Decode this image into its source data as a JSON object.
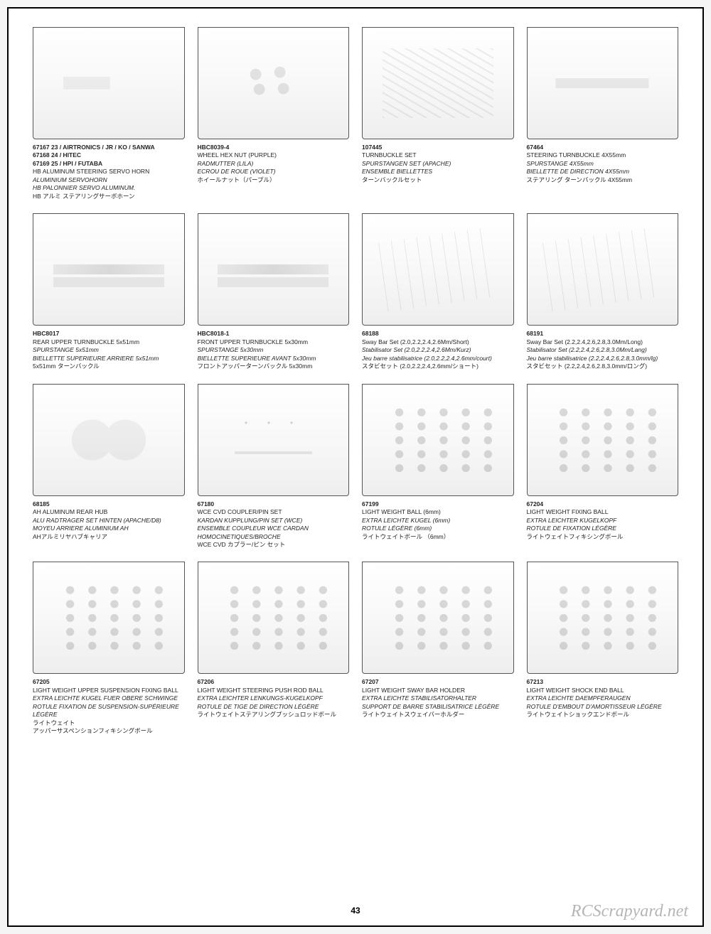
{
  "page_number": "43",
  "watermark": "RCScrapyard.net",
  "cards": [
    {
      "glyph": "horn",
      "lines": [
        {
          "t": "67167 23 / AIRTRONICS / JR / KO / SANWA",
          "b": true
        },
        {
          "t": "67168 24 / HITEC",
          "b": true
        },
        {
          "t": "67169 25 / HPI / FUTABA",
          "b": true
        },
        {
          "t": "HB ALUMINUM STEERING SERVO HORN"
        },
        {
          "t": "ALUMINIUM SERVOHORN",
          "i": true
        },
        {
          "t": "HB PALONNIER SERVO ALUMINUM.",
          "i": true
        },
        {
          "t": "HB アルミ ステアリングサーボホーン"
        }
      ]
    },
    {
      "glyph": "nuts",
      "lines": [
        {
          "t": "HBC8039-4",
          "b": true
        },
        {
          "t": "WHEEL HEX NUT (PURPLE)"
        },
        {
          "t": "RADMUTTER (LILA)",
          "i": true
        },
        {
          "t": "ECROU DE ROUE (VIOLET)",
          "i": true
        },
        {
          "t": "ホイールナット（パープル）"
        }
      ]
    },
    {
      "glyph": "links",
      "lines": [
        {
          "t": "107445",
          "b": true
        },
        {
          "t": "TURNBUCKLE SET"
        },
        {
          "t": "SPURSTANGEN SET (APACHE)",
          "i": true
        },
        {
          "t": "ENSEMBLE BIELLETTES",
          "i": true
        },
        {
          "t": "ターンバックルセット"
        }
      ]
    },
    {
      "glyph": "rod",
      "lines": [
        {
          "t": "67464",
          "b": true
        },
        {
          "t": "STEERING TURNBUCKLE 4X55mm"
        },
        {
          "t": "SPURSTANGE 4X55mm",
          "i": true
        },
        {
          "t": "BIELLETTE DE DIRECTION 4X55mm",
          "i": true
        },
        {
          "t": "ステアリング ターンバックル 4X55mm"
        }
      ]
    },
    {
      "glyph": "rods",
      "lines": [
        {
          "t": "HBC8017",
          "b": true
        },
        {
          "t": "REAR UPPER TURNBUCKLE 5x51mm"
        },
        {
          "t": "SPURSTANGE 5x51mm",
          "i": true
        },
        {
          "t": "BIELLETTE SUPERIEURE ARRIERE 5x51mm",
          "i": true
        },
        {
          "t": "5x51mm ターンバックル"
        }
      ]
    },
    {
      "glyph": "rods",
      "lines": [
        {
          "t": "HBC8018-1",
          "b": true
        },
        {
          "t": "FRONT UPPER TURNBUCKLE 5x30mm"
        },
        {
          "t": "SPURSTANGE 5x30mm",
          "i": true
        },
        {
          "t": "BIELLETTE SUPERIEURE AVANT 5x30mm",
          "i": true
        },
        {
          "t": "フロントアッパーターンバックル 5x30mm"
        }
      ]
    },
    {
      "glyph": "bars",
      "lines": [
        {
          "t": "68188",
          "b": true
        },
        {
          "t": "Sway Bar Set (2.0,2.2,2.4,2.6Mm/Short)"
        },
        {
          "t": "Stabilisator Set (2.0,2.2,2.4,2.6Mm/Kurz)",
          "i": true
        },
        {
          "t": "Jeu barre stabilisatrice (2.0,2.2,2.4,2.6mm/court)",
          "i": true
        },
        {
          "t": "スタビセット (2.0,2.2,2.4,2.6mm/ショート)"
        }
      ]
    },
    {
      "glyph": "bars",
      "lines": [
        {
          "t": "68191",
          "b": true
        },
        {
          "t": "Sway Bar Set (2.2,2.4,2.6,2.8,3.0Mm/Long)"
        },
        {
          "t": "Stabilisator Set (2.2,2.4,2.6,2.8,3.0Mm/Lang)",
          "i": true
        },
        {
          "t": "Jeu barre stabilisatrice (2.2,2.4,2.6,2.8,3.0mm/lg)",
          "i": true
        },
        {
          "t": "スタビセット (2.2,2.4,2.6,2.8,3.0mm/ロング)"
        }
      ]
    },
    {
      "glyph": "hub",
      "lines": [
        {
          "t": "68185",
          "b": true
        },
        {
          "t": "AH ALUMINUM REAR HUB"
        },
        {
          "t": "ALU RADTRAGER SET HINTEN (APACHE/D8)",
          "i": true
        },
        {
          "t": "MOYEU ARRIERE ALUMINIUM AH",
          "i": true
        },
        {
          "t": "AHアルミリヤハブキャリア"
        }
      ]
    },
    {
      "glyph": "coupler",
      "lines": [
        {
          "t": "67180",
          "b": true
        },
        {
          "t": "WCE CVD COUPLER/PIN SET"
        },
        {
          "t": "KARDAN KUPPLUNG/PIN SET (WCE)",
          "i": true
        },
        {
          "t": "ENSEMBLE COUPLEUR WCE CARDAN HOMOCINETIQUES/BROCHE",
          "i": true
        },
        {
          "t": "WCE CVD カプラー/ピン セット"
        }
      ]
    },
    {
      "glyph": "balls",
      "lines": [
        {
          "t": "67199",
          "b": true
        },
        {
          "t": "LIGHT WEIGHT BALL (6mm)"
        },
        {
          "t": "EXTRA LEICHTE KUGEL (6mm)",
          "i": true
        },
        {
          "t": "ROTULE LÉGÈRE (6mm)",
          "i": true
        },
        {
          "t": "ライトウェイトボール （6mm）"
        }
      ]
    },
    {
      "glyph": "balls",
      "lines": [
        {
          "t": "67204",
          "b": true
        },
        {
          "t": "LIGHT WEIGHT FIXING BALL"
        },
        {
          "t": "EXTRA LEICHTER KUGELKOPF",
          "i": true
        },
        {
          "t": "ROTULE DE FIXATION LÉGÈRE",
          "i": true
        },
        {
          "t": "ライトウェイトフィキシングボール"
        }
      ]
    },
    {
      "glyph": "balls",
      "lines": [
        {
          "t": "67205",
          "b": true
        },
        {
          "t": "LIGHT WEIGHT UPPER SUSPENSION FIXING BALL"
        },
        {
          "t": "EXTRA LEICHTE KUGEL FUER OBERE SCHWINGE",
          "i": true
        },
        {
          "t": "ROTULE FIXATION DE SUSPENSION-SUPÉRIEURE LÉGÈRE",
          "i": true
        },
        {
          "t": "ライトウェイト"
        },
        {
          "t": "アッパーサスペンションフィキシングボール"
        }
      ]
    },
    {
      "glyph": "balls",
      "lines": [
        {
          "t": "67206",
          "b": true
        },
        {
          "t": "LIGHT WEIGHT STEERING PUSH ROD BALL"
        },
        {
          "t": "EXTRA LEICHTER LENKUNGS-KUGELKOPF",
          "i": true
        },
        {
          "t": "ROTULE DE TIGE DE DIRECTION LÉGÈRE",
          "i": true
        },
        {
          "t": "ライトウェイトステアリングプッシュロッドボール"
        }
      ]
    },
    {
      "glyph": "balls",
      "lines": [
        {
          "t": "67207",
          "b": true
        },
        {
          "t": "LIGHT WEIGHT SWAY BAR HOLDER"
        },
        {
          "t": "EXTRA LEICHTE STABILISATORHALTER",
          "i": true
        },
        {
          "t": "SUPPORT DE BARRE STABILISATRICE LÉGÈRE",
          "i": true
        },
        {
          "t": "ライトウェイトスウェイバーホルダー"
        }
      ]
    },
    {
      "glyph": "balls",
      "lines": [
        {
          "t": "67213",
          "b": true
        },
        {
          "t": "LIGHT WEIGHT SHOCK END BALL"
        },
        {
          "t": "EXTRA LEICHTE DAEMPFERAUGEN",
          "i": true
        },
        {
          "t": "ROTULE D'EMBOUT D'AMORTISSEUR LÉGÈRE",
          "i": true
        },
        {
          "t": "ライトウェイトショックエンドボール"
        }
      ]
    }
  ]
}
